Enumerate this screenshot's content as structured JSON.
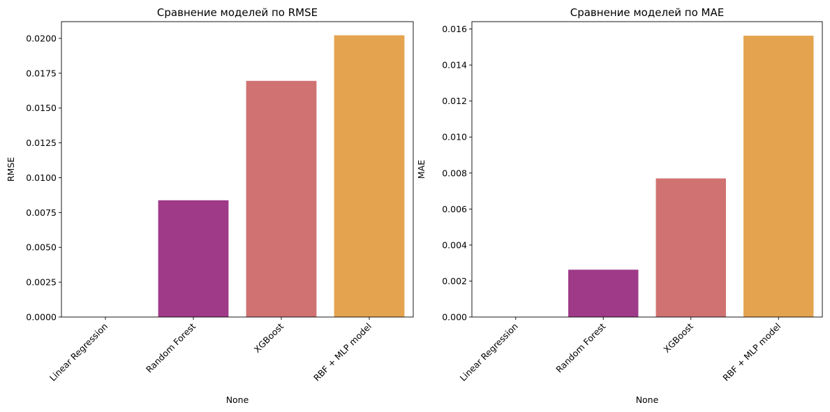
{
  "chart_data": [
    {
      "type": "bar",
      "title": "Сравнение моделей по RMSE",
      "xlabel": "None",
      "ylabel": "RMSE",
      "categories": [
        "Linear Regression",
        "Random Forest",
        "XGBoost",
        "RBF + MLP model"
      ],
      "values": [
        0.0,
        0.00838,
        0.01695,
        0.02022
      ],
      "ylim": [
        0,
        0.0212
      ],
      "yticks": [
        0.0,
        0.0025,
        0.005,
        0.0075,
        0.01,
        0.0125,
        0.015,
        0.0175,
        0.02
      ],
      "ytick_labels": [
        "0.0000",
        "0.0025",
        "0.0050",
        "0.0075",
        "0.0100",
        "0.0125",
        "0.0150",
        "0.0175",
        "0.0200"
      ],
      "colors": [
        "#0d0887",
        "#9f3a89",
        "#d07272",
        "#e4a44f"
      ],
      "grid": false
    },
    {
      "type": "bar",
      "title": "Сравнение моделей по MAE",
      "xlabel": "None",
      "ylabel": "MAE",
      "categories": [
        "Linear Regression",
        "Random Forest",
        "XGBoost",
        "RBF + MLP model"
      ],
      "values": [
        0.0,
        0.00263,
        0.0077,
        0.01563
      ],
      "ylim": [
        0,
        0.01641
      ],
      "yticks": [
        0.0,
        0.002,
        0.004,
        0.006,
        0.008,
        0.01,
        0.012,
        0.014,
        0.016
      ],
      "ytick_labels": [
        "0.000",
        "0.002",
        "0.004",
        "0.006",
        "0.008",
        "0.010",
        "0.012",
        "0.014",
        "0.016"
      ],
      "colors": [
        "#0d0887",
        "#9f3a89",
        "#d07272",
        "#e4a44f"
      ],
      "grid": false
    }
  ]
}
